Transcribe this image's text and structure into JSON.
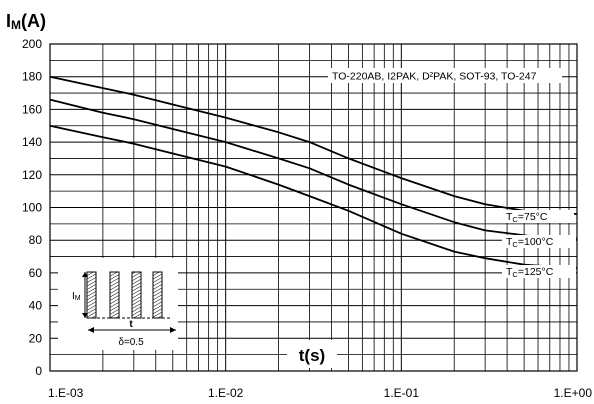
{
  "chart_data": {
    "type": "line",
    "title": "",
    "ylabel_main": "I",
    "ylabel_sub": "M",
    "ylabel_unit": "(A)",
    "xlabel": "t(s)",
    "x_scale": "log",
    "xlim": [
      0.001,
      1
    ],
    "ylim": [
      0,
      200
    ],
    "grid": true,
    "x_tick_labels": [
      "1.E-03",
      "1.E-02",
      "1.E-01",
      "1.E+00"
    ],
    "y_tick_labels": [
      "0",
      "20",
      "40",
      "60",
      "80",
      "100",
      "120",
      "140",
      "160",
      "180",
      "200"
    ],
    "package_note": "TO-220AB, I2PAK, D²PAK, SOT-93, TO-247",
    "series": [
      {
        "name_main": "T",
        "name_sub": "C",
        "name_rest": "=75°C",
        "points": [
          [
            0.001,
            180
          ],
          [
            0.002,
            173
          ],
          [
            0.003,
            169
          ],
          [
            0.005,
            163
          ],
          [
            0.01,
            155
          ],
          [
            0.02,
            146
          ],
          [
            0.03,
            140
          ],
          [
            0.05,
            130
          ],
          [
            0.1,
            118
          ],
          [
            0.2,
            107
          ],
          [
            0.3,
            102
          ],
          [
            0.5,
            98
          ],
          [
            0.7,
            97
          ],
          [
            1,
            96
          ]
        ]
      },
      {
        "name_main": "T",
        "name_sub": "C",
        "name_rest": "=100°C",
        "points": [
          [
            0.001,
            166
          ],
          [
            0.002,
            158
          ],
          [
            0.003,
            154
          ],
          [
            0.005,
            148
          ],
          [
            0.01,
            140
          ],
          [
            0.02,
            130
          ],
          [
            0.03,
            124
          ],
          [
            0.05,
            114
          ],
          [
            0.1,
            102
          ],
          [
            0.2,
            91
          ],
          [
            0.3,
            86
          ],
          [
            0.5,
            83
          ],
          [
            0.7,
            81
          ],
          [
            1,
            81
          ]
        ]
      },
      {
        "name_main": "T",
        "name_sub": "C",
        "name_rest": "=125°C",
        "points": [
          [
            0.001,
            150
          ],
          [
            0.002,
            143
          ],
          [
            0.003,
            139
          ],
          [
            0.005,
            133
          ],
          [
            0.01,
            125
          ],
          [
            0.02,
            114
          ],
          [
            0.03,
            107
          ],
          [
            0.05,
            98
          ],
          [
            0.1,
            84
          ],
          [
            0.2,
            73
          ],
          [
            0.3,
            69
          ],
          [
            0.5,
            65
          ],
          [
            0.7,
            64
          ],
          [
            1,
            63
          ]
        ]
      }
    ],
    "inset": {
      "im_main": "I",
      "im_sub": "M",
      "t_label": "t",
      "delta_label": "δ=0.5"
    }
  }
}
